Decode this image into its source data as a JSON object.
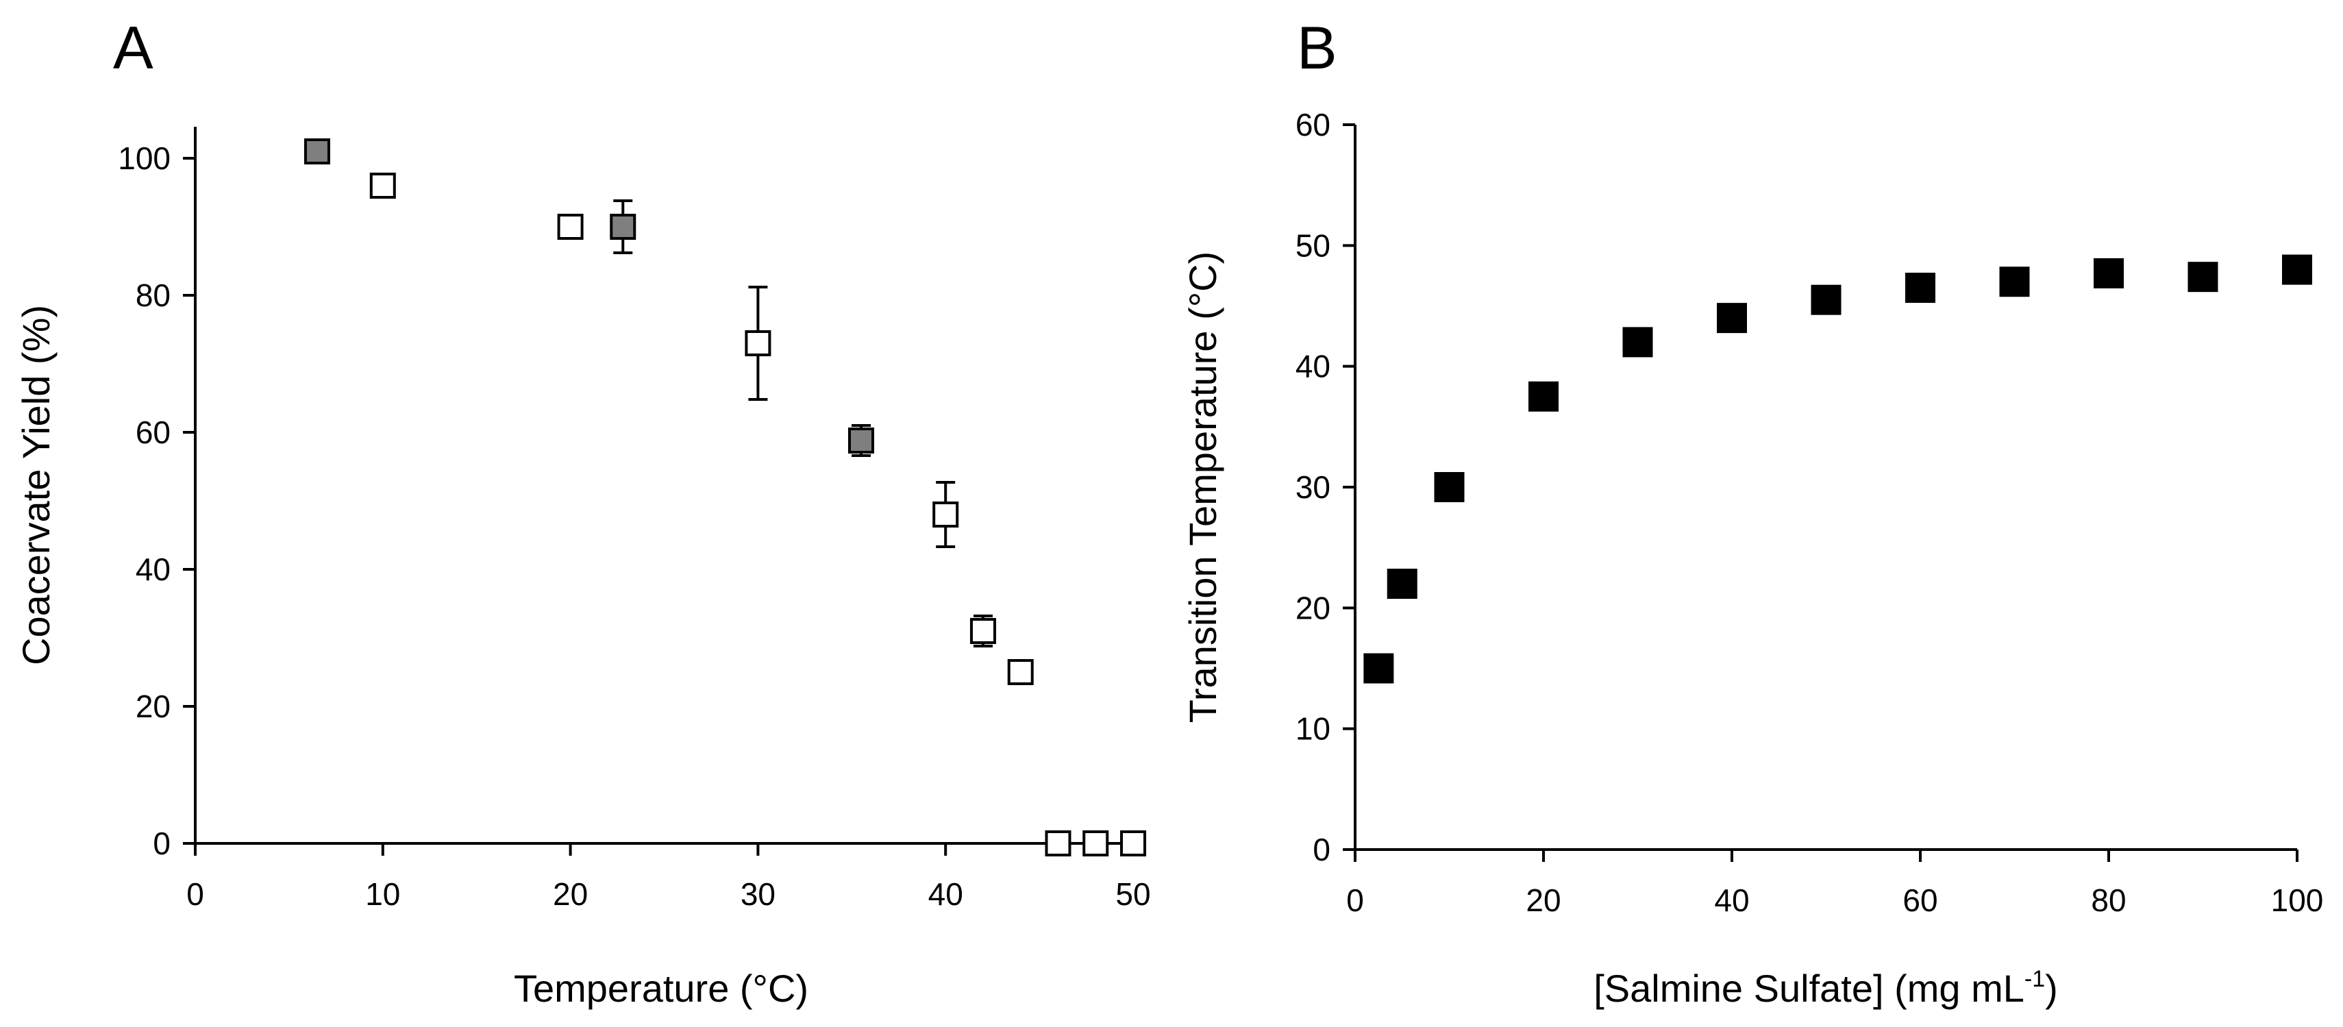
{
  "chart_data": [
    {
      "panel": "A",
      "type": "scatter",
      "title": "",
      "xlabel": "Temperature (°C)",
      "ylabel": "Coacervate Yield (%)",
      "xlim": [
        0,
        50
      ],
      "ylim": [
        0,
        100
      ],
      "xticks": [
        "0",
        "10",
        "20",
        "30",
        "40",
        "50"
      ],
      "yticks": [
        "0",
        "20",
        "40",
        "60",
        "80",
        "100"
      ],
      "grid": false,
      "legend": "none",
      "series": [
        {
          "name": "gray squares",
          "color": "#7f7f7f",
          "points": [
            {
              "x": 6.5,
              "y": 101,
              "err": 0
            },
            {
              "x": 22.8,
              "y": 90,
              "err": 3.8
            },
            {
              "x": 35.5,
              "y": 58.8,
              "err": 2.2
            }
          ]
        },
        {
          "name": "white squares",
          "color": "#ffffff",
          "points": [
            {
              "x": 10,
              "y": 96,
              "err": 0
            },
            {
              "x": 20,
              "y": 90,
              "err": 0
            },
            {
              "x": 30,
              "y": 73,
              "err": 8.2
            },
            {
              "x": 40,
              "y": 48,
              "err": 4.7
            },
            {
              "x": 42,
              "y": 31,
              "err": 2.2
            },
            {
              "x": 44,
              "y": 25,
              "err": 1.5
            },
            {
              "x": 46,
              "y": 0,
              "err": 0
            },
            {
              "x": 48,
              "y": 0,
              "err": 0
            },
            {
              "x": 50,
              "y": 0,
              "err": 0
            }
          ]
        }
      ]
    },
    {
      "panel": "B",
      "type": "scatter",
      "title": "",
      "xlabel": "[Salmine Sulfate] (mg mL",
      "xlabel_sup": "-1",
      "xlabel_end": ")",
      "ylabel": "Transition Temperature (°C)",
      "xlim": [
        0,
        100
      ],
      "ylim": [
        0,
        60
      ],
      "xticks": [
        "0",
        "20",
        "40",
        "60",
        "80",
        "100"
      ],
      "yticks": [
        "0",
        "10",
        "20",
        "30",
        "40",
        "50",
        "60"
      ],
      "grid": false,
      "legend": "none",
      "series": [
        {
          "name": "black squares",
          "color": "#000000",
          "points": [
            {
              "x": 2.5,
              "y": 15
            },
            {
              "x": 5,
              "y": 22
            },
            {
              "x": 10,
              "y": 30
            },
            {
              "x": 20,
              "y": 37.5
            },
            {
              "x": 30,
              "y": 42
            },
            {
              "x": 40,
              "y": 44
            },
            {
              "x": 50,
              "y": 45.5
            },
            {
              "x": 60,
              "y": 46.5
            },
            {
              "x": 70,
              "y": 47
            },
            {
              "x": 80,
              "y": 47.7
            },
            {
              "x": 90,
              "y": 47.4
            },
            {
              "x": 100,
              "y": 48
            }
          ]
        }
      ]
    }
  ]
}
